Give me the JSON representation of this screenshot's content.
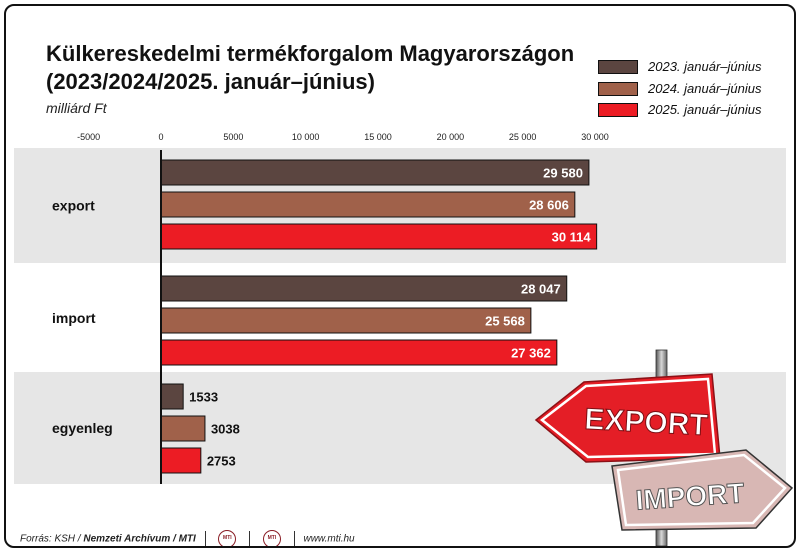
{
  "header": {
    "title_line1": "Külkereskedelmi termékforgalom Magyarországon",
    "title_line2": "(2023/2024/2025. január–június)",
    "unit": "milliárd Ft"
  },
  "legend": [
    {
      "label": "2023. január–június",
      "color": "#5b4540"
    },
    {
      "label": "2024. január–június",
      "color": "#a0614a"
    },
    {
      "label": "2025. január–június",
      "color": "#ec1c24"
    }
  ],
  "chart_data": {
    "type": "bar",
    "orientation": "horizontal",
    "categories": [
      "export",
      "import",
      "egyenleg"
    ],
    "series": [
      {
        "name": "2023. január–június",
        "values": [
          29580,
          28047,
          1533
        ],
        "labels": [
          "29 580",
          "28 047",
          "1533"
        ]
      },
      {
        "name": "2024. január–június",
        "values": [
          28606,
          25568,
          3038
        ],
        "labels": [
          "28 606",
          "25 568",
          "3038"
        ]
      },
      {
        "name": "2025. január–június",
        "values": [
          30114,
          27362,
          2753
        ],
        "labels": [
          "30 114",
          "27 362",
          "2753"
        ]
      }
    ],
    "xlim": [
      -5000,
      30000
    ],
    "xticks": [
      -5000,
      0,
      5000,
      10000,
      15000,
      20000,
      25000,
      30000
    ],
    "xtick_labels": [
      "-5000",
      "0",
      "5000",
      "10 000",
      "15 000",
      "20 000",
      "25 000",
      "30 000"
    ],
    "legend_position": "top-right",
    "grid": false
  },
  "illustration": {
    "sign_export": "EXPORT",
    "sign_import": "IMPORT"
  },
  "footer": {
    "source_prefix": "Forrás: KSH /",
    "source_bold": "Nemzeti Archívum / MTI",
    "logo_text": "MTI",
    "website": "www.mti.hu"
  }
}
